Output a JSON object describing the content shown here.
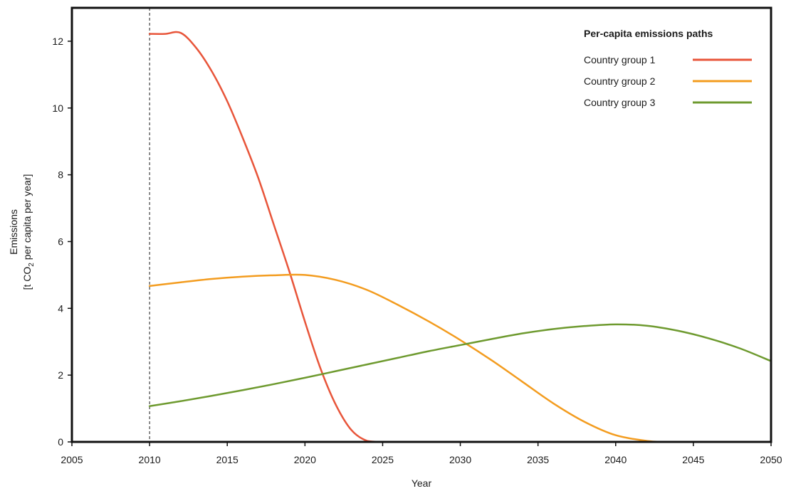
{
  "chart_data": {
    "type": "line",
    "title": "",
    "xlabel": "Year",
    "ylabel_line1": "Emissions",
    "ylabel_line2_prefix": "[t CO",
    "ylabel_line2_sub": "2",
    "ylabel_line2_suffix": " per capita per year]",
    "xlim": [
      2005,
      2050
    ],
    "ylim": [
      0,
      13
    ],
    "xticks": [
      2005,
      2010,
      2015,
      2020,
      2025,
      2030,
      2035,
      2040,
      2045,
      2050
    ],
    "yticks": [
      0,
      2,
      4,
      6,
      8,
      10,
      12
    ],
    "reference_line_x": 2010,
    "grid": false,
    "legend": {
      "title": "Per-capita emissions paths",
      "placement": "top-right"
    },
    "series": [
      {
        "name": "Country group 1",
        "color": "#e8553a",
        "x": [
          2010,
          2011,
          2012,
          2013,
          2014,
          2015,
          2016,
          2017,
          2018,
          2019,
          2020,
          2021,
          2022,
          2023,
          2024,
          2025
        ],
        "values": [
          12.22,
          12.22,
          12.25,
          11.8,
          11.1,
          10.2,
          9.1,
          7.9,
          6.5,
          5.1,
          3.6,
          2.2,
          1.1,
          0.35,
          0.03,
          0.0
        ]
      },
      {
        "name": "Country group 2",
        "color": "#f39c1f",
        "x": [
          2010,
          2012,
          2014,
          2016,
          2018,
          2020,
          2022,
          2024,
          2026,
          2028,
          2030,
          2032,
          2034,
          2036,
          2038,
          2040,
          2042,
          2043,
          2044
        ],
        "values": [
          4.67,
          4.78,
          4.88,
          4.95,
          4.99,
          5.0,
          4.85,
          4.55,
          4.1,
          3.6,
          3.05,
          2.45,
          1.8,
          1.15,
          0.6,
          0.2,
          0.03,
          0.0,
          0.0
        ]
      },
      {
        "name": "Country group 3",
        "color": "#6e9a2f",
        "x": [
          2010,
          2012,
          2014,
          2016,
          2018,
          2020,
          2022,
          2024,
          2026,
          2028,
          2030,
          2032,
          2034,
          2036,
          2038,
          2040,
          2042,
          2044,
          2046,
          2048,
          2050
        ],
        "values": [
          1.07,
          1.22,
          1.38,
          1.55,
          1.73,
          1.92,
          2.12,
          2.32,
          2.52,
          2.72,
          2.9,
          3.08,
          3.25,
          3.38,
          3.47,
          3.52,
          3.48,
          3.33,
          3.1,
          2.8,
          2.42
        ]
      }
    ]
  }
}
